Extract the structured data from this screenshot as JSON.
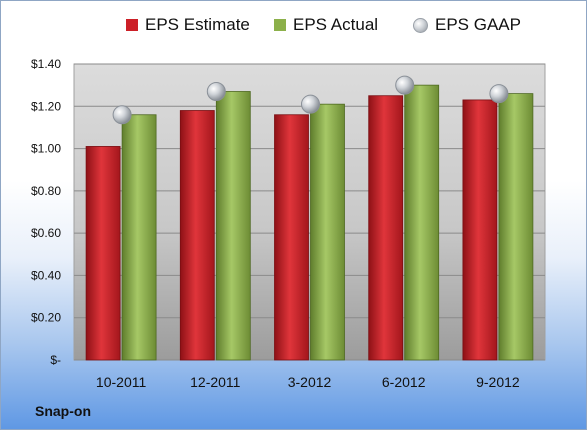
{
  "chart_data": {
    "type": "bar",
    "title": "",
    "xlabel": "",
    "ylabel": "",
    "categories": [
      "10-2011",
      "12-2011",
      "3-2012",
      "6-2012",
      "9-2012"
    ],
    "series": [
      {
        "name": "EPS Estimate",
        "kind": "bar",
        "color": "#cc1f27",
        "values": [
          1.01,
          1.18,
          1.16,
          1.25,
          1.23
        ]
      },
      {
        "name": "EPS Actual",
        "kind": "bar",
        "color": "#8cb04a",
        "values": [
          1.16,
          1.27,
          1.21,
          1.3,
          1.26
        ]
      },
      {
        "name": "EPS GAAP",
        "kind": "marker",
        "color": "#b9bec5",
        "values": [
          1.16,
          1.27,
          1.21,
          1.3,
          1.26
        ]
      }
    ],
    "ylim": [
      0,
      1.4
    ],
    "y_ticks": [
      "$-",
      "$0.20",
      "$0.40",
      "$0.60",
      "$0.80",
      "$1.00",
      "$1.20",
      "$1.40"
    ],
    "grid": true,
    "legend_position": "top"
  },
  "company_label": "Snap-on"
}
